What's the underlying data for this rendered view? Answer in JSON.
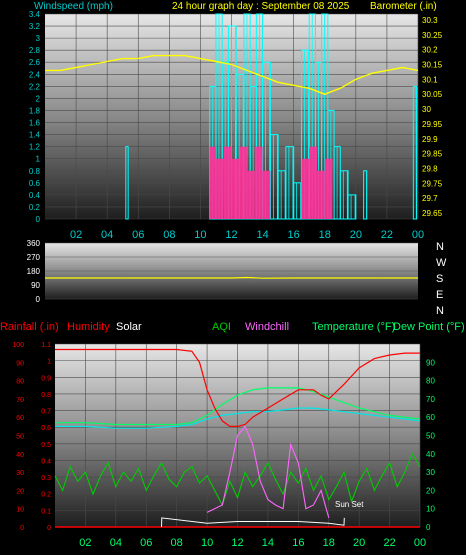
{
  "header": {
    "windspeed_label": "Windspeed (mph)",
    "title": "24 hour graph day : September 08 2025",
    "barometer_label": "Barometer (.in)"
  },
  "colors": {
    "windspeed": "#00ffff",
    "gust": "#ff3399",
    "barometer": "#ffff00",
    "direction": "#ffff00",
    "humidity": "#ff0000",
    "temperature": "#00ff66",
    "dewpoint": "#00e5e5",
    "aqi": "#00cc00",
    "windchill": "#ff66ff",
    "rainfall": "#ff0000",
    "solar": "#ffffff",
    "axis_left_top": "#00cccc",
    "axis_right_top": "#ffff00",
    "axis_left_bottom": "#ff0000",
    "axis_right_bottom": "#00ff66"
  },
  "compass": [
    "N",
    "W",
    "S",
    "E",
    "N"
  ],
  "legend_bottom": {
    "rainfall": "Rainfall (.in)",
    "humidity": "Humidity",
    "solar": "Solar",
    "aqi": "AQI",
    "windchill": "Windchill",
    "temperature": "Temperature (°F)",
    "dewpoint": "Dew Point (°F)"
  },
  "annotation": "Sun Set",
  "chart_data": [
    {
      "type": "bar",
      "name": "wind",
      "x_unit": "hour",
      "x_ticks": [
        "02",
        "04",
        "06",
        "08",
        "10",
        "12",
        "14",
        "16",
        "18",
        "20",
        "22",
        "00"
      ],
      "ylim": [
        0,
        3.4
      ],
      "y_ticks": [
        "0",
        "0.2",
        "0.4",
        "0.6",
        "0.8",
        "1",
        "1.2",
        "1.4",
        "1.6",
        "1.8",
        "2",
        "2.2",
        "2.4",
        "2.6",
        "2.8",
        "3",
        "3.2",
        "3.4"
      ],
      "y2lim": [
        29.63,
        30.32
      ],
      "y2_ticks": [
        "29.65",
        "29.7",
        "29.75",
        "29.8",
        "29.85",
        "29.9",
        "29.95",
        "30",
        "30.05",
        "30.1",
        "30.15",
        "30.2",
        "30.25",
        "30.3"
      ],
      "barometer": {
        "x": [
          0,
          1,
          2,
          3,
          4,
          5,
          6,
          7,
          8,
          9,
          10,
          11,
          12,
          13,
          14,
          15,
          16,
          17,
          18,
          19,
          20,
          21,
          22,
          23,
          24
        ],
        "y": [
          30.13,
          30.13,
          30.14,
          30.15,
          30.16,
          30.17,
          30.17,
          30.18,
          30.18,
          30.18,
          30.17,
          30.16,
          30.15,
          30.13,
          30.11,
          30.09,
          30.08,
          30.07,
          30.05,
          30.07,
          30.1,
          30.12,
          30.13,
          30.14,
          30.13
        ]
      },
      "wind_segments": [
        {
          "start": 5.2,
          "end": 5.35,
          "value": 1.2
        },
        {
          "start": 10.6,
          "end": 11.0,
          "value": 2.2
        },
        {
          "start": 11.0,
          "end": 11.4,
          "value": 3.4
        },
        {
          "start": 11.4,
          "end": 11.8,
          "value": 2.6
        },
        {
          "start": 11.8,
          "end": 12.3,
          "value": 3.2
        },
        {
          "start": 12.3,
          "end": 12.8,
          "value": 2.4
        },
        {
          "start": 12.8,
          "end": 13.2,
          "value": 3.4
        },
        {
          "start": 13.2,
          "end": 13.6,
          "value": 2.2
        },
        {
          "start": 13.6,
          "end": 14.0,
          "value": 3.4
        },
        {
          "start": 14.0,
          "end": 14.5,
          "value": 2.6
        },
        {
          "start": 14.5,
          "end": 15.0,
          "value": 1.4
        },
        {
          "start": 15.0,
          "end": 15.5,
          "value": 0.8
        },
        {
          "start": 15.5,
          "end": 16.0,
          "value": 1.2
        },
        {
          "start": 16.0,
          "end": 16.5,
          "value": 0.6
        },
        {
          "start": 16.5,
          "end": 17.0,
          "value": 2.8
        },
        {
          "start": 17.0,
          "end": 17.4,
          "value": 3.4
        },
        {
          "start": 17.4,
          "end": 17.8,
          "value": 2.6
        },
        {
          "start": 17.8,
          "end": 18.2,
          "value": 3.4
        },
        {
          "start": 18.2,
          "end": 18.6,
          "value": 1.8
        },
        {
          "start": 18.6,
          "end": 19.0,
          "value": 1.2
        },
        {
          "start": 19.0,
          "end": 19.5,
          "value": 0.8
        },
        {
          "start": 19.5,
          "end": 20.0,
          "value": 0.4
        },
        {
          "start": 20.5,
          "end": 20.7,
          "value": 0.8
        },
        {
          "start": 23.7,
          "end": 23.9,
          "value": 2.2
        }
      ],
      "gust_segments": [
        {
          "start": 10.6,
          "end": 11.0,
          "value": 1.2
        },
        {
          "start": 11.0,
          "end": 11.5,
          "value": 1.0
        },
        {
          "start": 11.5,
          "end": 12.0,
          "value": 1.2
        },
        {
          "start": 12.0,
          "end": 12.5,
          "value": 1.0
        },
        {
          "start": 12.5,
          "end": 13.0,
          "value": 1.2
        },
        {
          "start": 13.0,
          "end": 13.5,
          "value": 0.8
        },
        {
          "start": 13.5,
          "end": 14.0,
          "value": 1.2
        },
        {
          "start": 14.0,
          "end": 14.5,
          "value": 0.8
        },
        {
          "start": 16.5,
          "end": 17.0,
          "value": 1.0
        },
        {
          "start": 17.0,
          "end": 17.5,
          "value": 1.2
        },
        {
          "start": 17.5,
          "end": 18.0,
          "value": 0.8
        },
        {
          "start": 18.0,
          "end": 18.5,
          "value": 1.0
        }
      ]
    },
    {
      "type": "line",
      "name": "wind_direction",
      "ylim": [
        0,
        360
      ],
      "y_ticks": [
        "0",
        "90",
        "180",
        "270",
        "360"
      ],
      "direction": {
        "x": [
          0,
          4,
          8,
          12,
          13,
          14,
          16,
          20,
          24
        ],
        "y": [
          135,
          135,
          135,
          135,
          138,
          134,
          135,
          135,
          135
        ]
      }
    },
    {
      "type": "line",
      "name": "temperature_humidity",
      "x_ticks": [
        "02",
        "04",
        "06",
        "08",
        "10",
        "12",
        "14",
        "16",
        "18",
        "20",
        "22",
        "00"
      ],
      "left_ticks": [
        "0",
        "10",
        "20",
        "30",
        "40",
        "50",
        "60",
        "70",
        "80",
        "90",
        "100"
      ],
      "rain_ticks": [
        "0",
        "0.1",
        "0.2",
        "0.3",
        "0.4",
        "0.5",
        "0.6",
        "0.7",
        "0.8",
        "0.9",
        "1",
        "1.1"
      ],
      "right_ticks": [
        "0",
        "10",
        "20",
        "30",
        "40",
        "50",
        "60",
        "70",
        "80",
        "90"
      ],
      "humidity": {
        "x": [
          0,
          2,
          4,
          6,
          8,
          9,
          9.5,
          10,
          10.5,
          11,
          11.5,
          12,
          12.5,
          13,
          14,
          15,
          16,
          17,
          17.5,
          18,
          19,
          20,
          21,
          22,
          23,
          24
        ],
        "y": [
          97,
          97,
          97,
          97,
          97,
          96,
          90,
          75,
          65,
          58,
          55,
          55,
          56,
          60,
          65,
          70,
          75,
          75,
          72,
          70,
          78,
          87,
          92,
          94,
          95,
          95
        ]
      },
      "temperature": {
        "x": [
          0,
          2,
          4,
          6,
          8,
          9,
          10,
          11,
          12,
          13,
          14,
          15,
          16,
          17,
          18,
          19,
          20,
          21,
          22,
          23,
          24
        ],
        "y": [
          57,
          57,
          56,
          56,
          56,
          57,
          61,
          67,
          72,
          75,
          76,
          76,
          76,
          74,
          71,
          68,
          65,
          63,
          61,
          60,
          59
        ]
      },
      "dewpoint": {
        "x": [
          0,
          2,
          4,
          6,
          8,
          9,
          10,
          11,
          12,
          13,
          14,
          15,
          16,
          17,
          18,
          19,
          20,
          21,
          22,
          23,
          24
        ],
        "y": [
          55,
          55,
          54,
          54,
          55,
          56,
          59,
          61,
          62,
          63,
          63,
          64,
          65,
          65,
          64,
          63,
          62,
          61,
          60,
          59,
          58
        ]
      },
      "aqi": {
        "x": [
          0,
          0.5,
          1,
          1.5,
          2,
          2.5,
          3,
          3.5,
          4,
          4.5,
          5,
          5.5,
          6,
          6.5,
          7,
          7.5,
          8,
          8.5,
          9,
          9.5,
          10,
          10.5,
          11,
          11.5,
          12,
          12.5,
          13,
          13.5,
          14,
          14.5,
          15,
          15.5,
          16,
          16.5,
          17,
          17.5,
          18,
          18.5,
          19,
          19.5,
          20,
          20.5,
          21,
          21.5,
          22,
          22.5,
          23,
          23.5,
          24
        ],
        "y": [
          28,
          20,
          33,
          25,
          30,
          18,
          28,
          35,
          22,
          30,
          25,
          32,
          20,
          28,
          35,
          26,
          22,
          30,
          33,
          24,
          28,
          20,
          12,
          25,
          16,
          30,
          22,
          28,
          35,
          26,
          18,
          30,
          24,
          32,
          20,
          28,
          15,
          22,
          30,
          14,
          25,
          32,
          20,
          28,
          35,
          22,
          30,
          40,
          33
        ]
      },
      "windchill": {
        "x": [
          10,
          11,
          11.5,
          12,
          12.5,
          13,
          13.5,
          14,
          14.5,
          15,
          15.5,
          16,
          16.5,
          17,
          17.5,
          18
        ],
        "y": [
          8,
          12,
          30,
          50,
          55,
          45,
          25,
          15,
          12,
          10,
          45,
          35,
          10,
          12,
          20,
          5
        ]
      },
      "solar": {
        "x": [
          7,
          7.02,
          10,
          12,
          14,
          16,
          18,
          19,
          19.02
        ],
        "y": [
          0,
          5,
          2,
          3,
          3,
          3,
          2,
          1,
          5
        ]
      },
      "rainfall": {
        "x": [
          0,
          24
        ],
        "y": [
          0,
          0
        ]
      }
    }
  ]
}
